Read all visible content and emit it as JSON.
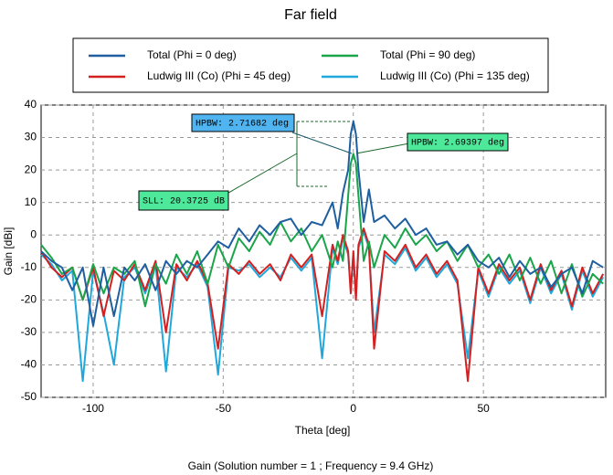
{
  "chart_data": {
    "type": "line",
    "title": "Far field",
    "subtitle": "Gain (Solution number = 1 ; Frequency = 9.4 GHz)",
    "x_label": "Theta [deg]",
    "y_label": "Gain [dBi]",
    "xlim": [
      -120,
      97
    ],
    "ylim": [
      -50,
      40
    ],
    "xticks": [
      -100,
      -50,
      0,
      50
    ],
    "yticks": [
      -50,
      -40,
      -30,
      -20,
      -10,
      0,
      10,
      20,
      30,
      40
    ],
    "grid": true,
    "legend": "top",
    "annotations": [
      "HPBW: 2.71682 deg",
      "HPBW: 2.69397 deg",
      "SLL: 20.3725 dB"
    ],
    "x": [
      -120,
      -116,
      -112,
      -108,
      -104,
      -100,
      -96,
      -92,
      -88,
      -84,
      -80,
      -76,
      -72,
      -68,
      -64,
      -60,
      -56,
      -52,
      -48,
      -44,
      -40,
      -36,
      -32,
      -28,
      -24,
      -20,
      -16,
      -12,
      -8,
      -6,
      -4,
      -2,
      -1,
      0,
      1,
      2,
      4,
      6,
      8,
      12,
      16,
      20,
      24,
      28,
      32,
      36,
      40,
      44,
      48,
      52,
      56,
      60,
      64,
      68,
      72,
      76,
      80,
      84,
      88,
      92,
      96
    ],
    "series": [
      {
        "name": "Total (Phi = 0 deg)",
        "color": "#1f5fa0",
        "values": [
          -5,
          -8,
          -10,
          -17,
          -10,
          -28,
          -10,
          -25,
          -10,
          -14,
          -9,
          -17,
          -8,
          -12,
          -8,
          -10,
          -6,
          -2,
          -4,
          2,
          -2,
          3,
          0,
          4,
          5,
          0,
          4,
          3,
          10,
          2,
          13,
          20,
          31,
          35,
          31,
          20,
          4,
          14,
          4,
          6,
          2,
          5,
          0,
          2,
          -3,
          -2,
          -6,
          -3,
          -8,
          -10,
          -7,
          -13,
          -8,
          -12,
          -10,
          -16,
          -12,
          -10,
          -18,
          -8,
          -10
        ]
      },
      {
        "name": "Total (Phi = 90 deg)",
        "color": "#1aa54a",
        "values": [
          -3,
          -7,
          -12,
          -10,
          -20,
          -9,
          -18,
          -10,
          -12,
          -8,
          -22,
          -9,
          -15,
          -6,
          -12,
          -5,
          -15,
          -3,
          -10,
          -1,
          -5,
          1,
          -3,
          4,
          -2,
          2,
          -5,
          0,
          -10,
          -2,
          -8,
          12,
          22,
          25,
          22,
          12,
          -8,
          -2,
          -10,
          0,
          -4,
          2,
          -3,
          0,
          -5,
          -2,
          -8,
          -3,
          -10,
          -6,
          -12,
          -6,
          -14,
          -7,
          -15,
          -8,
          -18,
          -9,
          -19,
          -12,
          -15
        ]
      },
      {
        "name": "Ludwig III (Co) (Phi = 45 deg)",
        "color": "#d42020",
        "values": [
          -5,
          -10,
          -13,
          -10,
          -20,
          -10,
          -25,
          -11,
          -14,
          -9,
          -17,
          -8,
          -30,
          -9,
          -14,
          -8,
          -15,
          -35,
          -9,
          -12,
          -8,
          -12,
          -9,
          -14,
          -6,
          -10,
          -6,
          -25,
          -3,
          -8,
          0,
          -5,
          -18,
          -5,
          -20,
          -3,
          2,
          -3,
          -35,
          -5,
          -8,
          -3,
          -10,
          -6,
          -12,
          -8,
          -14,
          -45,
          -10,
          -18,
          -9,
          -14,
          -10,
          -20,
          -9,
          -17,
          -11,
          -22,
          -10,
          -18,
          -12
        ]
      },
      {
        "name": "Ludwig III (Co) (Phi = 135 deg)",
        "color": "#1ea8dc",
        "values": [
          -6,
          -9,
          -14,
          -11,
          -45,
          -11,
          -24,
          -40,
          -13,
          -10,
          -18,
          -9,
          -42,
          -10,
          -13,
          -9,
          -16,
          -43,
          -10,
          -11,
          -9,
          -13,
          -10,
          -13,
          -7,
          -11,
          -7,
          -38,
          -4,
          -9,
          -1,
          -6,
          -17,
          -6,
          -19,
          -4,
          1,
          -4,
          -30,
          -6,
          -9,
          -4,
          -11,
          -7,
          -13,
          -9,
          -15,
          -38,
          -11,
          -19,
          -10,
          -15,
          -11,
          -21,
          -10,
          -18,
          -12,
          -23,
          -11,
          -19,
          -13
        ]
      }
    ]
  }
}
